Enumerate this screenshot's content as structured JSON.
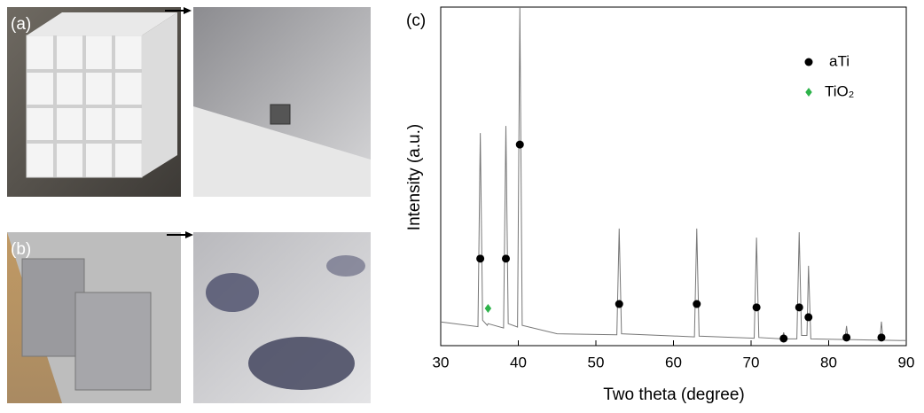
{
  "panel_labels": [
    "(a)",
    "(b)",
    "(c)"
  ],
  "chart_data": {
    "type": "line",
    "x_label": "Two theta (degree)",
    "y_label": "Intensity (a.u.)",
    "xlim": [
      30,
      90
    ],
    "xticks": [
      30,
      40,
      50,
      60,
      70,
      80,
      90
    ],
    "ylim": [
      0,
      100
    ],
    "pattern": {
      "color": "#777777",
      "x": [
        30,
        34.8,
        35.1,
        35.4,
        36.0,
        36.1,
        38.1,
        38.4,
        38.7,
        39.9,
        40.2,
        40.5,
        45,
        52.7,
        53.0,
        53.3,
        62.7,
        63.0,
        63.3,
        70.4,
        70.7,
        71.0,
        74.0,
        74.2,
        74.4,
        75.9,
        76.2,
        76.5,
        77.2,
        77.4,
        77.7,
        82.1,
        82.3,
        82.5,
        86.6,
        86.8,
        87.0,
        90
      ],
      "y": [
        7.0,
        5.6,
        62.8,
        7.5,
        6.0,
        6.5,
        5.2,
        64.9,
        6.5,
        5.5,
        100,
        6.0,
        3.5,
        3.2,
        34.6,
        3.5,
        2.6,
        34.6,
        2.8,
        2.2,
        31.9,
        2.4,
        2.0,
        3.9,
        2.0,
        2.0,
        33.5,
        3.0,
        3.0,
        23.6,
        2.0,
        1.8,
        5.8,
        1.8,
        1.6,
        7.1,
        1.6,
        1.5
      ]
    },
    "markers": [
      {
        "name": "aTi",
        "color": "#000000",
        "marker": "circle",
        "x": [
          35.1,
          38.4,
          40.2,
          53.0,
          63.0,
          70.7,
          74.2,
          76.2,
          77.4,
          82.3,
          86.8
        ],
        "y": [
          25.7,
          25.7,
          59.4,
          12.3,
          12.3,
          11.3,
          2.1,
          11.3,
          8.4,
          2.4,
          2.4
        ]
      },
      {
        "name": "TiO₂",
        "color": "#2db34a",
        "marker": "diamond",
        "x": [
          36.1
        ],
        "y": [
          11.0
        ]
      }
    ]
  }
}
